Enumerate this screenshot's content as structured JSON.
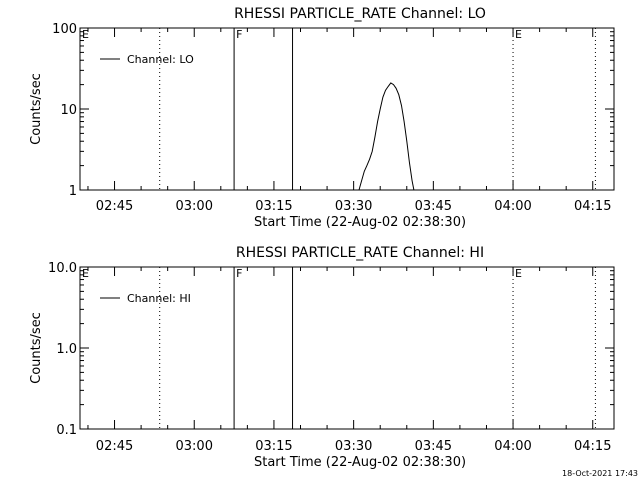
{
  "footer": {
    "timestamp": "18-Oct-2021 17:43"
  },
  "chart_data": [
    {
      "type": "line",
      "title": "RHESSI PARTICLE_RATE Channel: LO",
      "xlabel": "Start Time (22-Aug-02 02:38:30)",
      "ylabel": "Counts/sec",
      "yscale": "log",
      "ylim": [
        1,
        100
      ],
      "xlim": [
        "02:38:30",
        "04:19:00"
      ],
      "y_tick_labels": [
        "1",
        "10",
        "100"
      ],
      "x_tick_labels": [
        "02:45",
        "03:00",
        "03:15",
        "03:30",
        "03:45",
        "04:00",
        "04:15"
      ],
      "legend": {
        "position": "top-left",
        "entries": [
          "Channel: LO"
        ]
      },
      "series": [
        {
          "name": "Channel: LO",
          "points": [
            [
              "03:31:00",
              1.0
            ],
            [
              "03:31:30",
              1.3
            ],
            [
              "03:32:00",
              1.7
            ],
            [
              "03:32:30",
              2.0
            ],
            [
              "03:33:00",
              2.4
            ],
            [
              "03:33:30",
              3.0
            ],
            [
              "03:34:00",
              4.5
            ],
            [
              "03:34:30",
              7.0
            ],
            [
              "03:35:00",
              10.0
            ],
            [
              "03:35:30",
              14.0
            ],
            [
              "03:36:00",
              17.0
            ],
            [
              "03:36:30",
              19.0
            ],
            [
              "03:37:00",
              21.0
            ],
            [
              "03:37:30",
              20.0
            ],
            [
              "03:38:00",
              18.0
            ],
            [
              "03:38:30",
              15.0
            ],
            [
              "03:39:00",
              11.0
            ],
            [
              "03:39:30",
              7.0
            ],
            [
              "03:40:00",
              4.0
            ],
            [
              "03:40:30",
              2.2
            ],
            [
              "03:41:00",
              1.3
            ],
            [
              "03:41:20",
              1.0
            ]
          ]
        }
      ],
      "markers": [
        {
          "label": "E",
          "time": "02:38:30",
          "style": "none"
        },
        {
          "label": "",
          "time": "02:53:30",
          "style": "dotted"
        },
        {
          "label": "F",
          "time": "03:07:30",
          "style": "solid"
        },
        {
          "label": "",
          "time": "03:18:30",
          "style": "solid"
        },
        {
          "label": "E",
          "time": "04:00:00",
          "style": "dotted"
        },
        {
          "label": "",
          "time": "04:15:30",
          "style": "dotted"
        }
      ]
    },
    {
      "type": "line",
      "title": "RHESSI PARTICLE_RATE Channel: HI",
      "xlabel": "Start Time (22-Aug-02 02:38:30)",
      "ylabel": "Counts/sec",
      "yscale": "log",
      "ylim": [
        0.1,
        10.0
      ],
      "xlim": [
        "02:38:30",
        "04:19:00"
      ],
      "y_tick_labels": [
        "0.1",
        "1.0",
        "10.0"
      ],
      "x_tick_labels": [
        "02:45",
        "03:00",
        "03:15",
        "03:30",
        "03:45",
        "04:00",
        "04:15"
      ],
      "legend": {
        "position": "top-left",
        "entries": [
          "Channel: HI"
        ]
      },
      "series": [
        {
          "name": "Channel: HI",
          "points": []
        }
      ],
      "markers": [
        {
          "label": "E",
          "time": "02:38:30",
          "style": "none"
        },
        {
          "label": "",
          "time": "02:53:30",
          "style": "dotted"
        },
        {
          "label": "F",
          "time": "03:07:30",
          "style": "solid"
        },
        {
          "label": "",
          "time": "03:18:30",
          "style": "solid"
        },
        {
          "label": "E",
          "time": "04:00:00",
          "style": "dotted"
        },
        {
          "label": "",
          "time": "04:15:30",
          "style": "dotted"
        }
      ]
    }
  ]
}
